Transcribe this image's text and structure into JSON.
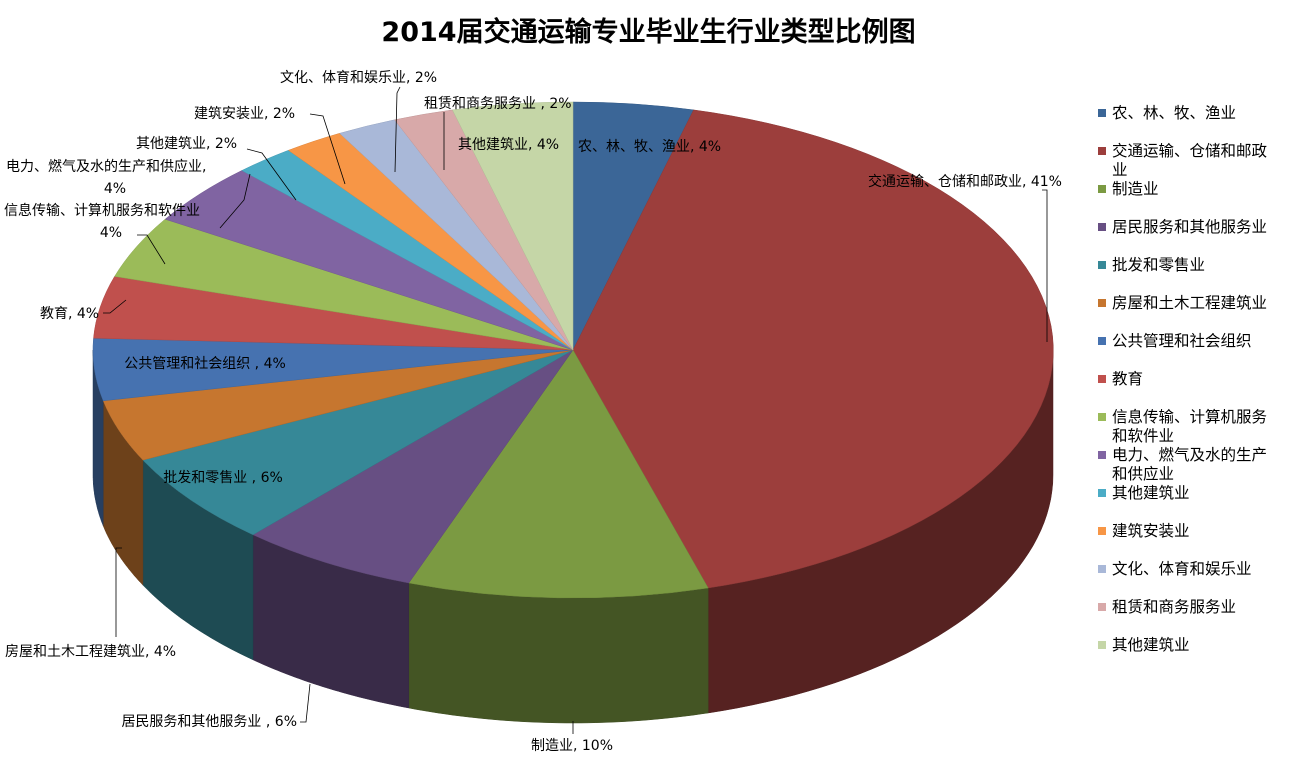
{
  "chart_data": {
    "type": "pie",
    "title": "2014届交通运输专业毕业生行业类型比例图",
    "series": [
      {
        "name": "农、林、牧、渔业",
        "value": 4,
        "label": "农、林、牧、渔业, 4%",
        "color": "#3B6697"
      },
      {
        "name": "交通运输、仓储和邮政业",
        "value": 41,
        "label": "交通运输、仓储和邮政业, 41%",
        "color": "#9C3E3C"
      },
      {
        "name": "制造业",
        "value": 10,
        "label": "制造业, 10%",
        "color": "#7B9A42"
      },
      {
        "name": "居民服务和其他服务业",
        "value": 6,
        "label": "居民服务和其他服务业 , 6%",
        "color": "#674F83"
      },
      {
        "name": "批发和零售业",
        "value": 6,
        "label": "批发和零售业 , 6%",
        "color": "#368897"
      },
      {
        "name": "房屋和土木工程建筑业",
        "value": 4,
        "label": "房屋和土木工程建筑业, 4%",
        "color": "#C6762F"
      },
      {
        "name": "公共管理和社会组织",
        "value": 4,
        "label": "公共管理和社会组织 , 4%",
        "color": "#4672B0"
      },
      {
        "name": "教育",
        "value": 4,
        "label": "教育, 4%",
        "color": "#C0504D"
      },
      {
        "name": "信息传输、计算机服务和软件业",
        "value": 4,
        "label_lines": [
          "信息传输、计算机服务和软件业",
          "4%"
        ],
        "color": "#9BBB59"
      },
      {
        "name": "电力、燃气及水的生产和供应业",
        "value": 4,
        "label_lines": [
          "电力、燃气及水的生产和供应业,",
          "4%"
        ],
        "color": "#8064A2"
      },
      {
        "name": "其他建筑业",
        "value": 2,
        "label": "其他建筑业, 2%",
        "color": "#4BACC6"
      },
      {
        "name": "建筑安装业",
        "value": 2,
        "label": "建筑安装业, 2%",
        "color": "#F79646"
      },
      {
        "name": "文化、体育和娱乐业",
        "value": 2,
        "label": "文化、体育和娱乐业, 2%",
        "color": "#A9B8D8"
      },
      {
        "name": "租赁和商务服务业",
        "value": 2,
        "label": "租赁和商务服务业 , 2%",
        "color": "#D8A9A9"
      },
      {
        "name": "其他建筑业",
        "value": 4,
        "label": "其他建筑业, 4%",
        "color": "#C5D6A7"
      }
    ],
    "legend": {
      "position": "right",
      "items": [
        {
          "lines": [
            "农、林、牧、渔业"
          ]
        },
        {
          "lines": [
            "交通运输、仓储和邮政",
            "业"
          ]
        },
        {
          "lines": [
            "制造业"
          ]
        },
        {
          "lines": [
            "居民服务和其他服务业"
          ]
        },
        {
          "lines": [
            "批发和零售业"
          ]
        },
        {
          "lines": [
            "房屋和土木工程建筑业"
          ]
        },
        {
          "lines": [
            "公共管理和社会组织"
          ]
        },
        {
          "lines": [
            "教育"
          ]
        },
        {
          "lines": [
            "信息传输、计算机服务",
            "和软件业"
          ]
        },
        {
          "lines": [
            "电力、燃气及水的生产",
            "和供应业"
          ]
        },
        {
          "lines": [
            "其他建筑业"
          ]
        },
        {
          "lines": [
            "建筑安装业"
          ]
        },
        {
          "lines": [
            "文化、体育和娱乐业"
          ]
        },
        {
          "lines": [
            "租赁和商务服务业"
          ]
        },
        {
          "lines": [
            "其他建筑业"
          ]
        }
      ]
    }
  }
}
